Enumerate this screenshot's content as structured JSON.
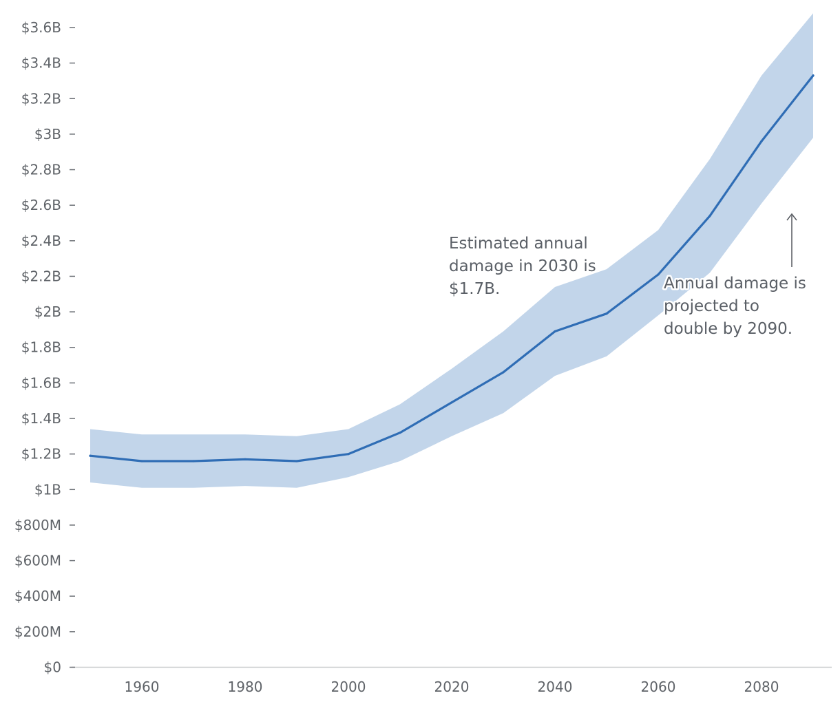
{
  "chart_data": {
    "type": "area",
    "title": "",
    "xlabel": "",
    "ylabel": "",
    "xlim": [
      1950,
      2090
    ],
    "ylim": [
      0,
      3.7
    ],
    "grid": false,
    "legend": "none",
    "x_ticks": [
      1960,
      1980,
      2000,
      2020,
      2040,
      2060,
      2080
    ],
    "y_ticks": [
      {
        "value": 0,
        "label": "$0"
      },
      {
        "value": 0.2,
        "label": "$200M"
      },
      {
        "value": 0.4,
        "label": "$400M"
      },
      {
        "value": 0.6,
        "label": "$600M"
      },
      {
        "value": 0.8,
        "label": "$800M"
      },
      {
        "value": 1.0,
        "label": "$1B"
      },
      {
        "value": 1.2,
        "label": "$1.2B"
      },
      {
        "value": 1.4,
        "label": "$1.4B"
      },
      {
        "value": 1.6,
        "label": "$1.6B"
      },
      {
        "value": 1.8,
        "label": "$1.8B"
      },
      {
        "value": 2.0,
        "label": "$2B"
      },
      {
        "value": 2.2,
        "label": "$2.2B"
      },
      {
        "value": 2.4,
        "label": "$2.4B"
      },
      {
        "value": 2.6,
        "label": "$2.6B"
      },
      {
        "value": 2.8,
        "label": "$2.8B"
      },
      {
        "value": 3.0,
        "label": "$3B"
      },
      {
        "value": 3.2,
        "label": "$3.2B"
      },
      {
        "value": 3.4,
        "label": "$3.4B"
      },
      {
        "value": 3.6,
        "label": "$3.6B"
      }
    ],
    "x": [
      1950,
      1960,
      1970,
      1980,
      1990,
      2000,
      2010,
      2020,
      2030,
      2040,
      2050,
      2060,
      2070,
      2080,
      2090
    ],
    "series": [
      {
        "values": [
          1.19,
          1.16,
          1.16,
          1.17,
          1.16,
          1.2,
          1.32,
          1.49,
          1.66,
          1.89,
          1.99,
          2.21,
          2.54,
          2.96,
          3.33
        ]
      }
    ],
    "band": {
      "upper": [
        1.34,
        1.31,
        1.31,
        1.31,
        1.3,
        1.34,
        1.48,
        1.68,
        1.89,
        2.14,
        2.24,
        2.46,
        2.86,
        3.33,
        3.68
      ],
      "lower": [
        1.04,
        1.01,
        1.01,
        1.02,
        1.01,
        1.07,
        1.16,
        1.3,
        1.43,
        1.64,
        1.75,
        1.98,
        2.22,
        2.61,
        2.98
      ]
    },
    "colors": {
      "line": "#2f6db5",
      "band": "#c2d5ea",
      "axis": "#c9cbce",
      "text": "#5f6368"
    },
    "annotations": [
      {
        "lines": [
          "Estimated annual",
          "damage in 2030 is",
          "$1.7B."
        ]
      },
      {
        "lines": [
          "Annual damage is",
          "projected to",
          "double by 2090."
        ],
        "arrow": "up"
      }
    ]
  }
}
